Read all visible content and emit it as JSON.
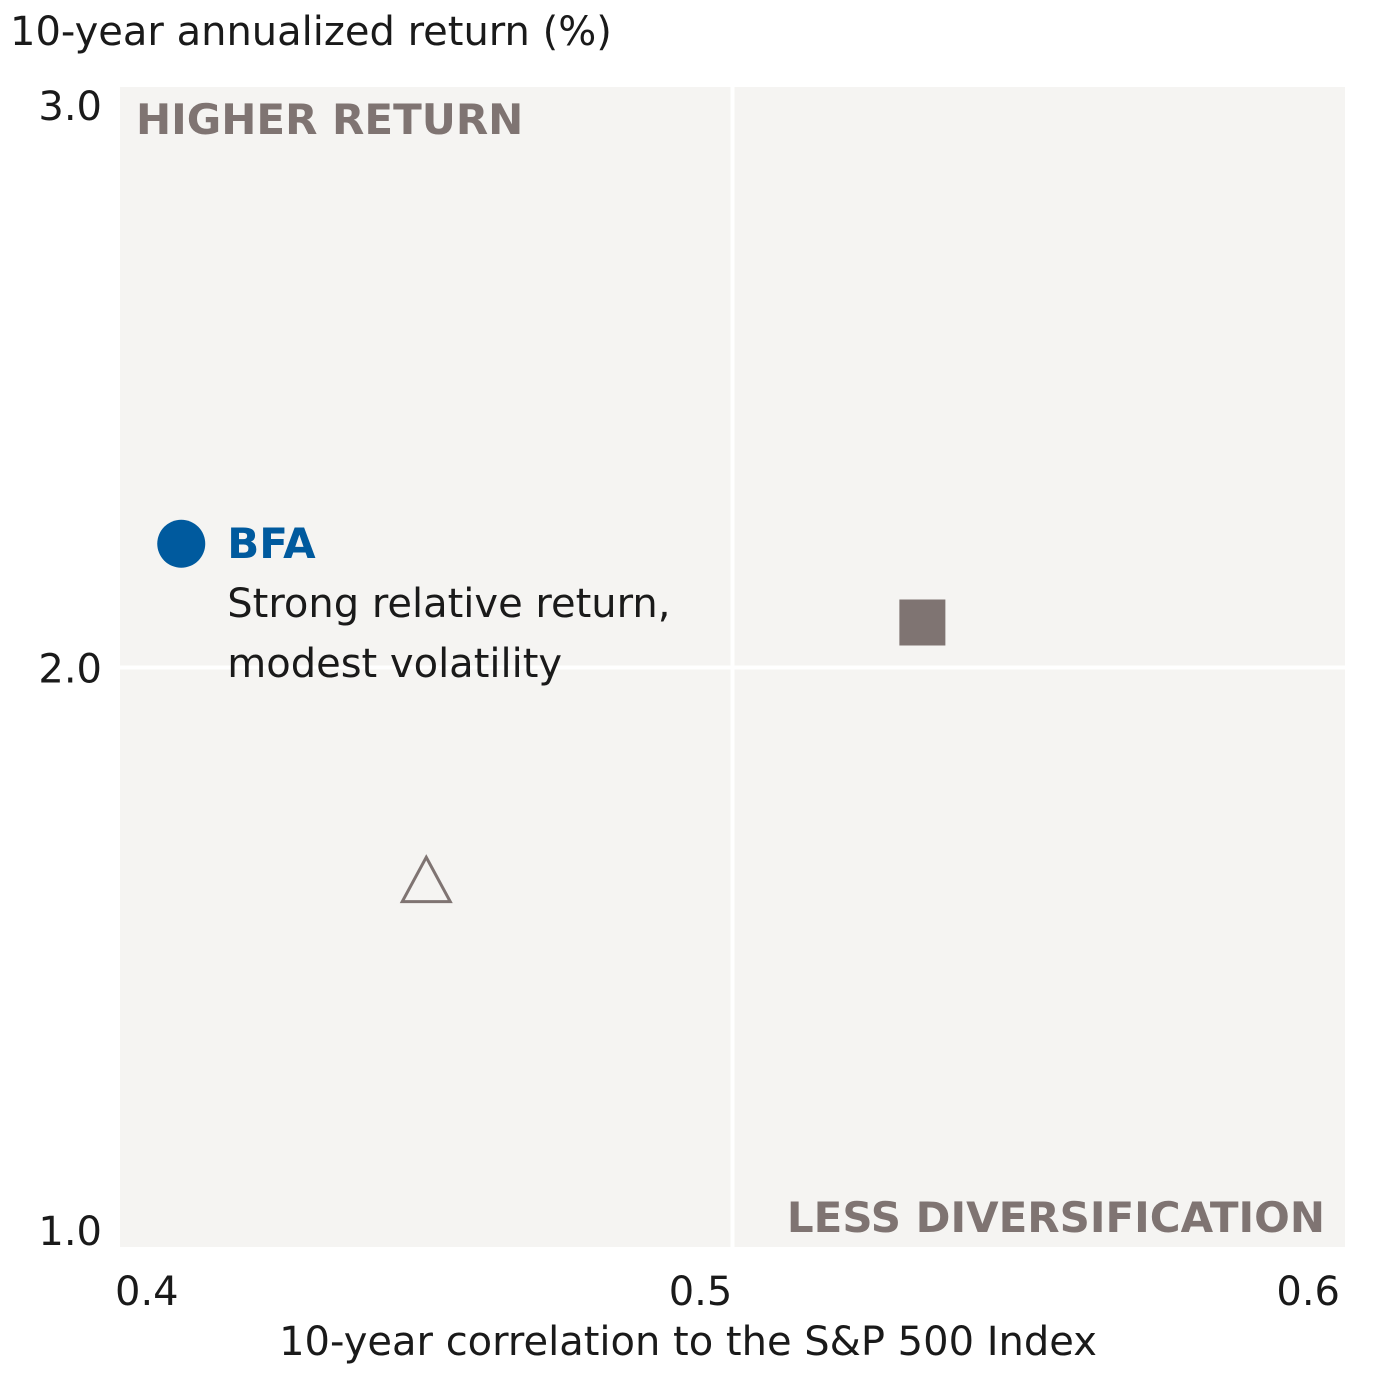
{
  "chart_data": {
    "type": "scatter",
    "title": "",
    "xlabel": "10-year correlation to the S&P 500 Index",
    "ylabel": "10-year annualized return (%)",
    "xlim": [
      0.4,
      0.6
    ],
    "ylim": [
      1.0,
      3.0
    ],
    "x_ticks": [
      "0.4",
      "0.5",
      "0.6"
    ],
    "y_ticks": [
      "3.0",
      "2.0",
      "1.0"
    ],
    "x_tick_values": [
      0.4,
      0.5,
      0.6
    ],
    "y_tick_values": [
      3.0,
      2.0,
      1.0
    ],
    "quadrant_labels": {
      "top_left": "HIGHER RETURN",
      "bottom_right": "LESS DIVERSIFICATION"
    },
    "background_color": "#f5f4f2",
    "divider_color": "#ffffff",
    "points": [
      {
        "label": "BFA",
        "note_line1": "Strong relative return,",
        "note_line2": "modest volatility",
        "x": 0.41,
        "y": 2.22,
        "marker": "circle",
        "color": "#005a9e"
      },
      {
        "label": "",
        "x": 0.531,
        "y": 2.08,
        "marker": "square",
        "color": "#7f7472"
      },
      {
        "label": "",
        "x": 0.45,
        "y": 1.62,
        "marker": "triangle-open",
        "color": "#7f7472"
      }
    ]
  }
}
